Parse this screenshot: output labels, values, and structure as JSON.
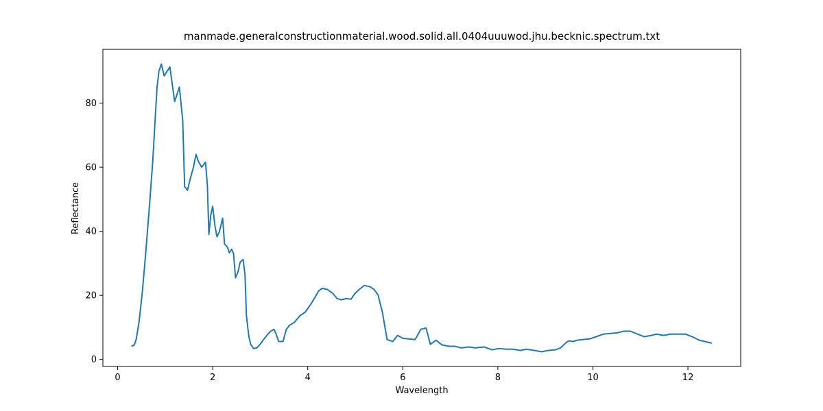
{
  "chart_data": {
    "type": "line",
    "title": "manmade.generalconstructionmaterial.wood.solid.all.0404uuuwod.jhu.becknic.spectrum.txt",
    "xlabel": "Wavelength",
    "ylabel": "Reflectance",
    "x": [
      0.29,
      0.35,
      0.39,
      0.45,
      0.52,
      0.59,
      0.66,
      0.74,
      0.79,
      0.83,
      0.87,
      0.92,
      0.98,
      1.1,
      1.2,
      1.3,
      1.37,
      1.41,
      1.47,
      1.53,
      1.59,
      1.65,
      1.7,
      1.77,
      1.85,
      1.89,
      1.92,
      1.96,
      2.0,
      2.05,
      2.09,
      2.14,
      2.21,
      2.25,
      2.31,
      2.35,
      2.4,
      2.44,
      2.48,
      2.53,
      2.58,
      2.64,
      2.68,
      2.71,
      2.76,
      2.8,
      2.86,
      2.93,
      3.0,
      3.07,
      3.15,
      3.22,
      3.29,
      3.33,
      3.39,
      3.48,
      3.55,
      3.62,
      3.72,
      3.84,
      3.95,
      4.04,
      4.13,
      4.23,
      4.31,
      4.42,
      4.52,
      4.62,
      4.7,
      4.81,
      4.91,
      4.99,
      5.08,
      5.19,
      5.31,
      5.4,
      5.48,
      5.57,
      5.67,
      5.79,
      5.89,
      6.0,
      6.12,
      6.26,
      6.38,
      6.49,
      6.58,
      6.7,
      6.83,
      6.98,
      7.1,
      7.23,
      7.39,
      7.53,
      7.71,
      7.88,
      8.02,
      8.17,
      8.31,
      8.48,
      8.6,
      8.77,
      8.92,
      9.06,
      9.21,
      9.32,
      9.44,
      9.5,
      9.58,
      9.67,
      9.78,
      9.93,
      10.07,
      10.22,
      10.36,
      10.51,
      10.65,
      10.79,
      10.94,
      11.08,
      11.23,
      11.34,
      11.49,
      11.63,
      11.77,
      11.95,
      12.09,
      12.24,
      12.35,
      12.5
    ],
    "series": [
      {
        "color": "#1f77b4",
        "values": [
          4.1,
          4.5,
          6.2,
          11.6,
          21,
          33,
          46,
          62,
          75,
          85,
          90,
          92.2,
          88.5,
          91.3,
          80.5,
          85,
          74.6,
          54,
          52.8,
          56.5,
          59.7,
          64,
          61.8,
          60,
          61.6,
          54,
          39,
          45,
          47.8,
          41.5,
          38.3,
          39.8,
          44.1,
          36,
          35.1,
          33.3,
          34.4,
          33,
          25.5,
          27.2,
          30.4,
          31.2,
          26.5,
          13.7,
          7.3,
          4.7,
          3.4,
          3.6,
          4.7,
          6.2,
          7.7,
          8.8,
          9.4,
          8.1,
          5.6,
          5.6,
          9.4,
          10.7,
          11.6,
          13.7,
          14.8,
          16.7,
          18.8,
          21.4,
          22.2,
          21.8,
          20.7,
          19,
          18.6,
          19,
          18.8,
          20.5,
          21.8,
          23.1,
          22.7,
          21.8,
          20.1,
          14.8,
          6.2,
          5.6,
          7.5,
          6.6,
          6.4,
          6.2,
          9.4,
          9.8,
          4.7,
          6.0,
          4.5,
          4.1,
          4.1,
          3.6,
          3.9,
          3.6,
          3.9,
          3.0,
          3.4,
          3.2,
          3.2,
          2.8,
          3.2,
          2.8,
          2.4,
          2.8,
          3.0,
          3.6,
          5.3,
          5.8,
          5.6,
          6.0,
          6.2,
          6.4,
          7.1,
          7.9,
          8.1,
          8.3,
          8.8,
          8.8,
          7.9,
          7.1,
          7.5,
          7.9,
          7.5,
          7.9,
          7.9,
          7.9,
          7.1,
          6.0,
          5.6,
          5.1
        ]
      }
    ],
    "xlim": [
      -0.31,
      13.11
    ],
    "ylim": [
      -2.2,
      96.8
    ],
    "xticks": [
      0,
      2,
      4,
      6,
      8,
      10,
      12
    ],
    "yticks": [
      0,
      20,
      40,
      60,
      80
    ]
  }
}
